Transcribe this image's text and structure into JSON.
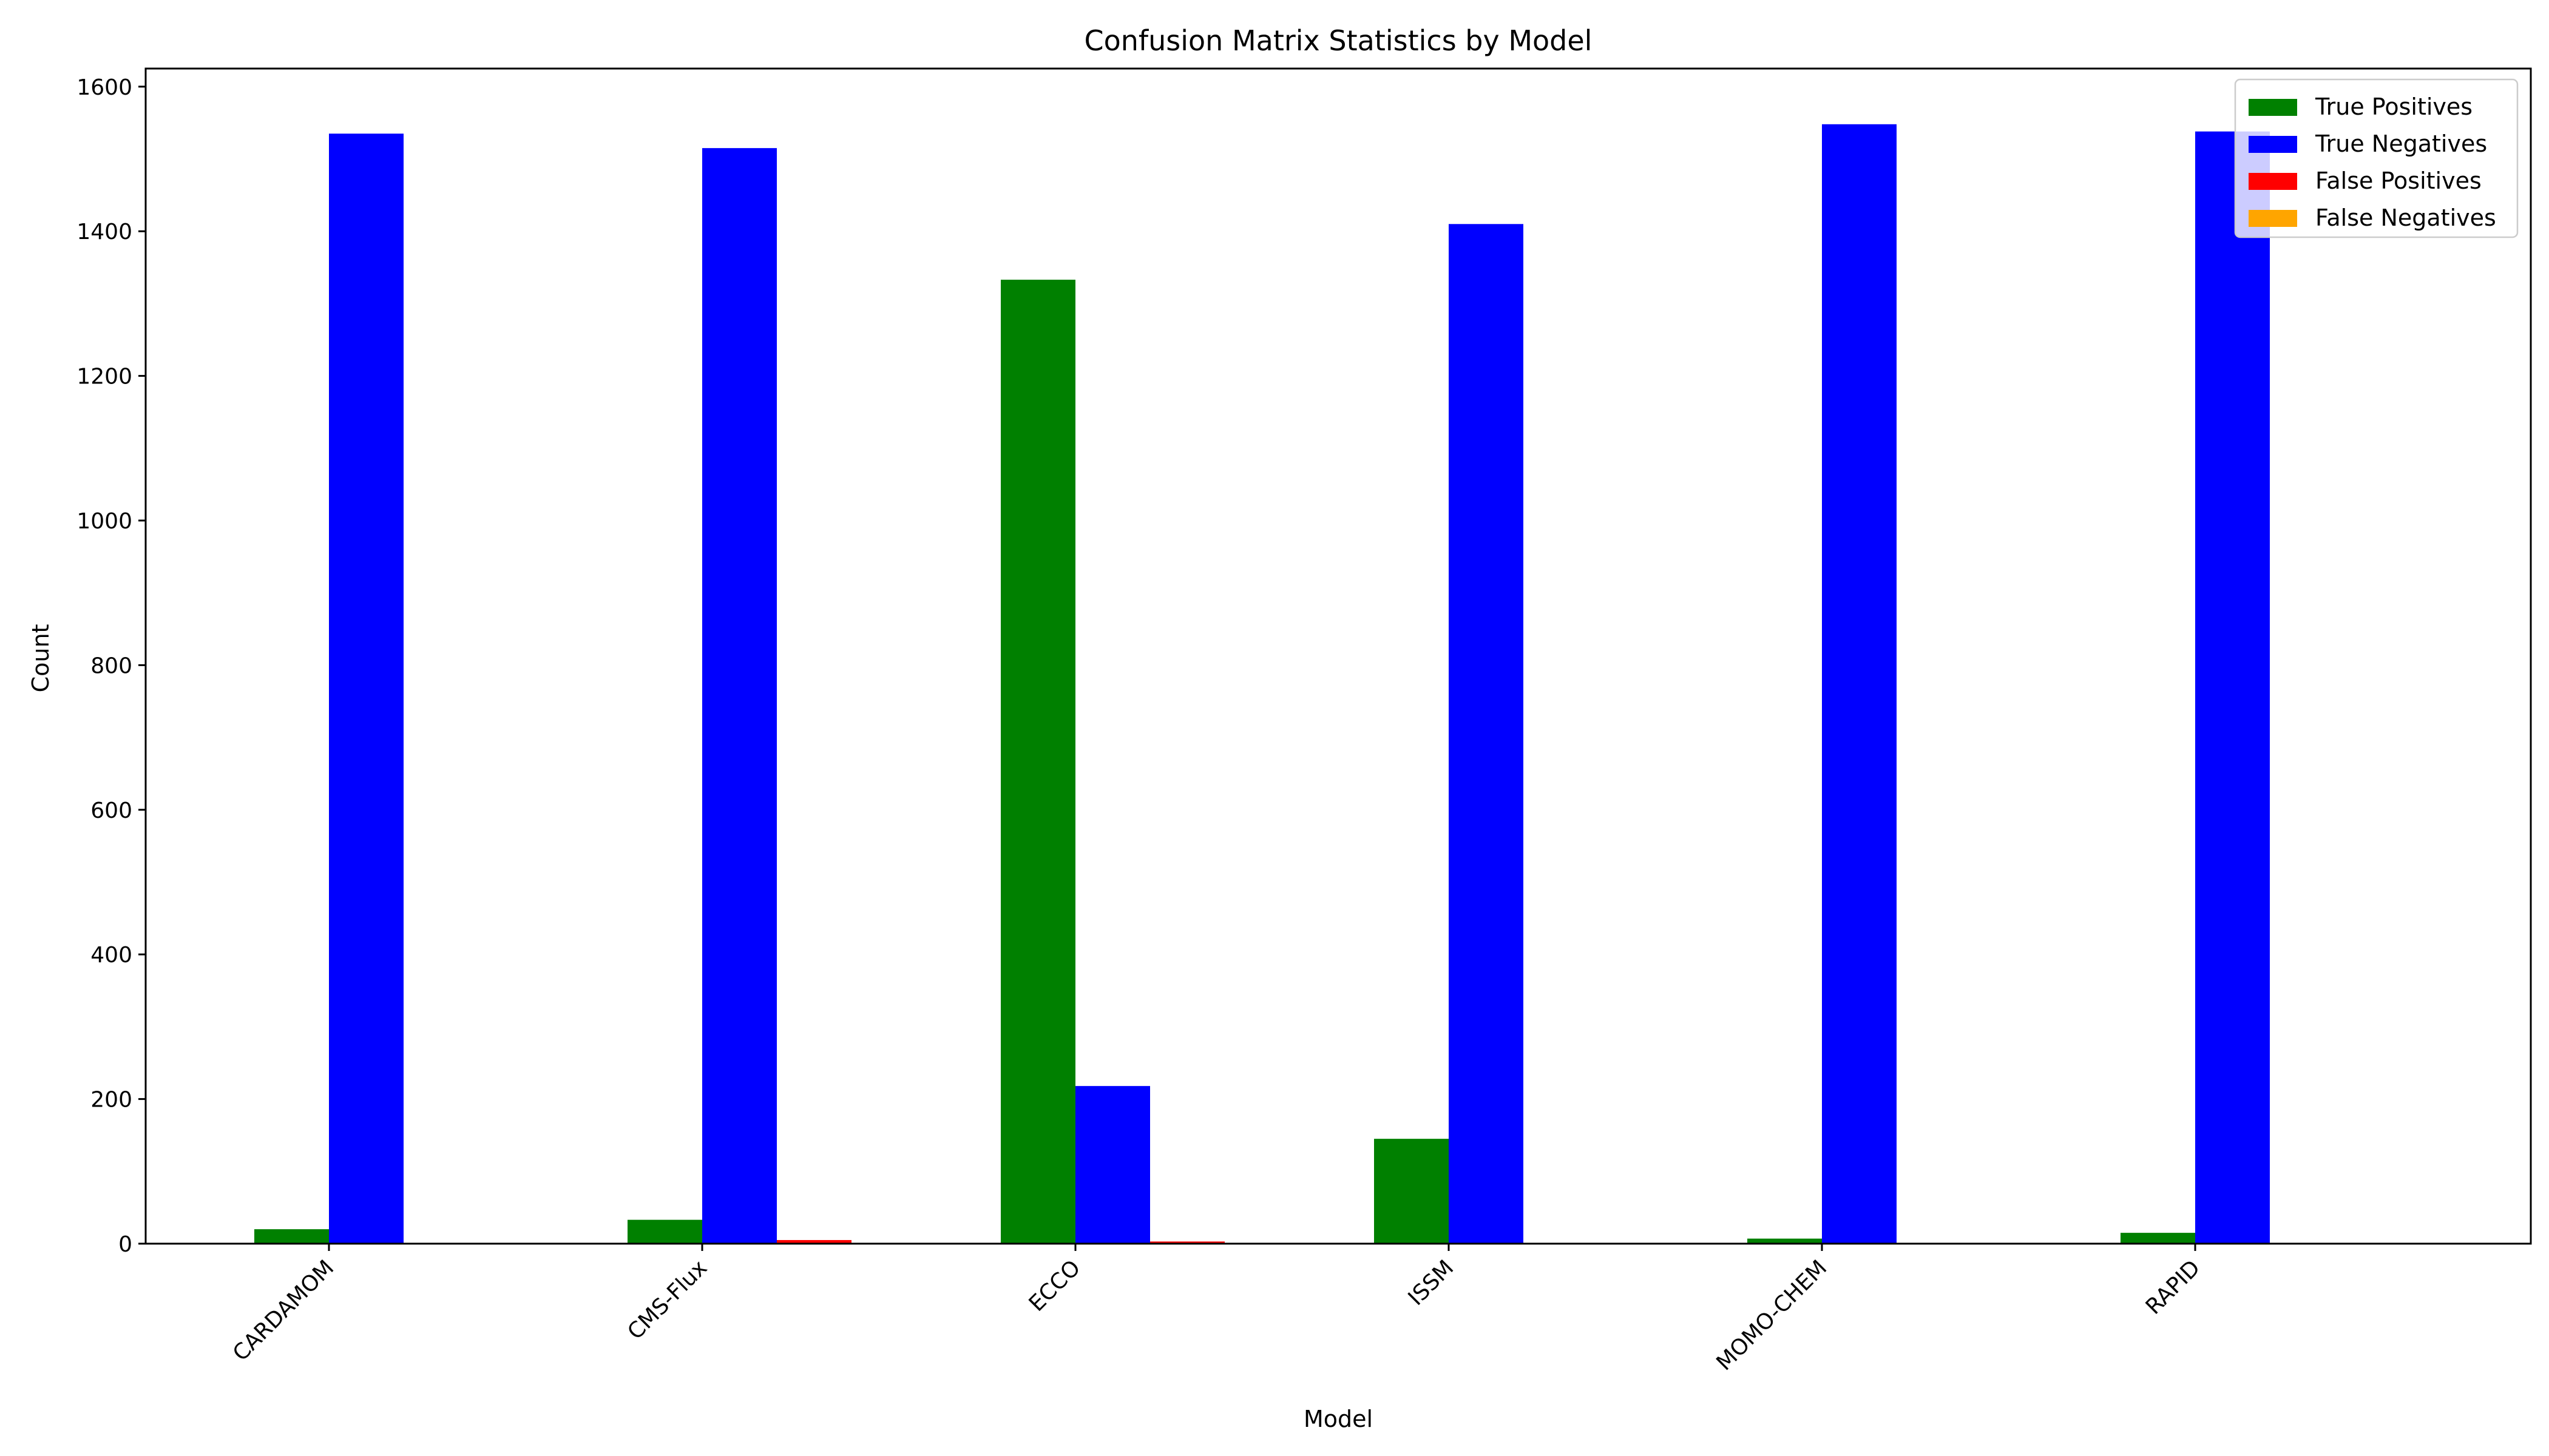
{
  "chart_data": {
    "type": "bar",
    "title": "Confusion Matrix Statistics by Model",
    "xlabel": "Model",
    "ylabel": "Count",
    "ylim": [
      0,
      1625
    ],
    "yticks": [
      0,
      200,
      400,
      600,
      800,
      1000,
      1200,
      1400,
      1600
    ],
    "categories": [
      "CARDAMOM",
      "CMS-Flux",
      "ECCO",
      "ISSM",
      "MOMO-CHEM",
      "RAPID"
    ],
    "legend_position": "top-right",
    "grid": false,
    "series": [
      {
        "name": "True Positives",
        "color": "#008000",
        "values": [
          20,
          33,
          1333,
          145,
          7,
          15
        ]
      },
      {
        "name": "True Negatives",
        "color": "#0000ff",
        "values": [
          1535,
          1515,
          218,
          1410,
          1548,
          1538
        ]
      },
      {
        "name": "False Positives",
        "color": "#ff0000",
        "values": [
          0,
          5,
          3,
          0,
          0,
          0
        ]
      },
      {
        "name": "False Negatives",
        "color": "#ffa500",
        "values": [
          0,
          0,
          0,
          0,
          0,
          0
        ]
      }
    ]
  }
}
